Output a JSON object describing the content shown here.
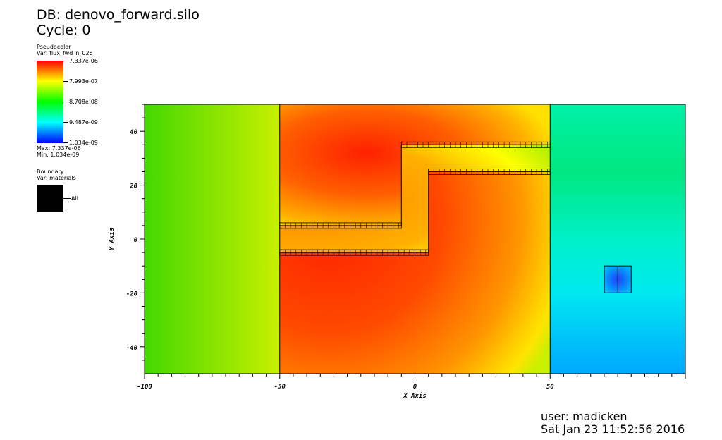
{
  "header": {
    "db": "DB: denovo_forward.silo",
    "cycle": "Cycle: 0"
  },
  "legend": {
    "pseudocolor": {
      "title": "Pseudocolor",
      "var": "Var: flux_fwd_n_026",
      "ticks": [
        "7.337e-06",
        "7.993e-07",
        "8.708e-08",
        "9.487e-09",
        "1.034e-09"
      ],
      "max": "Max:  7.337e-06",
      "min": "Min:  1.034e-09",
      "colors": [
        "#ff0000",
        "#ffff00",
        "#00ff00",
        "#00ffff",
        "#0000ff"
      ]
    },
    "boundary": {
      "title": "Boundary",
      "var": "Var: materials",
      "entry": "All",
      "color": "#000000"
    }
  },
  "chart_data": {
    "type": "heatmap",
    "xlabel": "X Axis",
    "ylabel": "Y Axis",
    "xlim": [
      -100,
      100
    ],
    "ylim": [
      -50,
      50
    ],
    "xticks": [
      "-100",
      "-50",
      "0",
      "50"
    ],
    "yticks": [
      "40",
      "20",
      "0",
      "-20",
      "-40"
    ],
    "xtick_values": [
      -100,
      -50,
      0,
      50
    ],
    "ytick_values": [
      40,
      20,
      0,
      -20,
      -40
    ],
    "color_scale": "log",
    "value_range": [
      1.034e-09,
      7.337e-06
    ],
    "boundary_lines_x": [
      -50,
      50
    ],
    "channel_upper": [
      [
        -50,
        5
      ],
      [
        -5,
        5
      ],
      [
        -5,
        35
      ],
      [
        50,
        35
      ]
    ],
    "channel_lower": [
      [
        -50,
        -5
      ],
      [
        5,
        -5
      ],
      [
        5,
        25
      ],
      [
        50,
        25
      ]
    ],
    "detector_box": [
      [
        70,
        -20
      ],
      [
        80,
        -10
      ]
    ]
  },
  "footer": {
    "user": "user: madicken",
    "date": "Sat Jan 23 11:52:56 2016"
  }
}
